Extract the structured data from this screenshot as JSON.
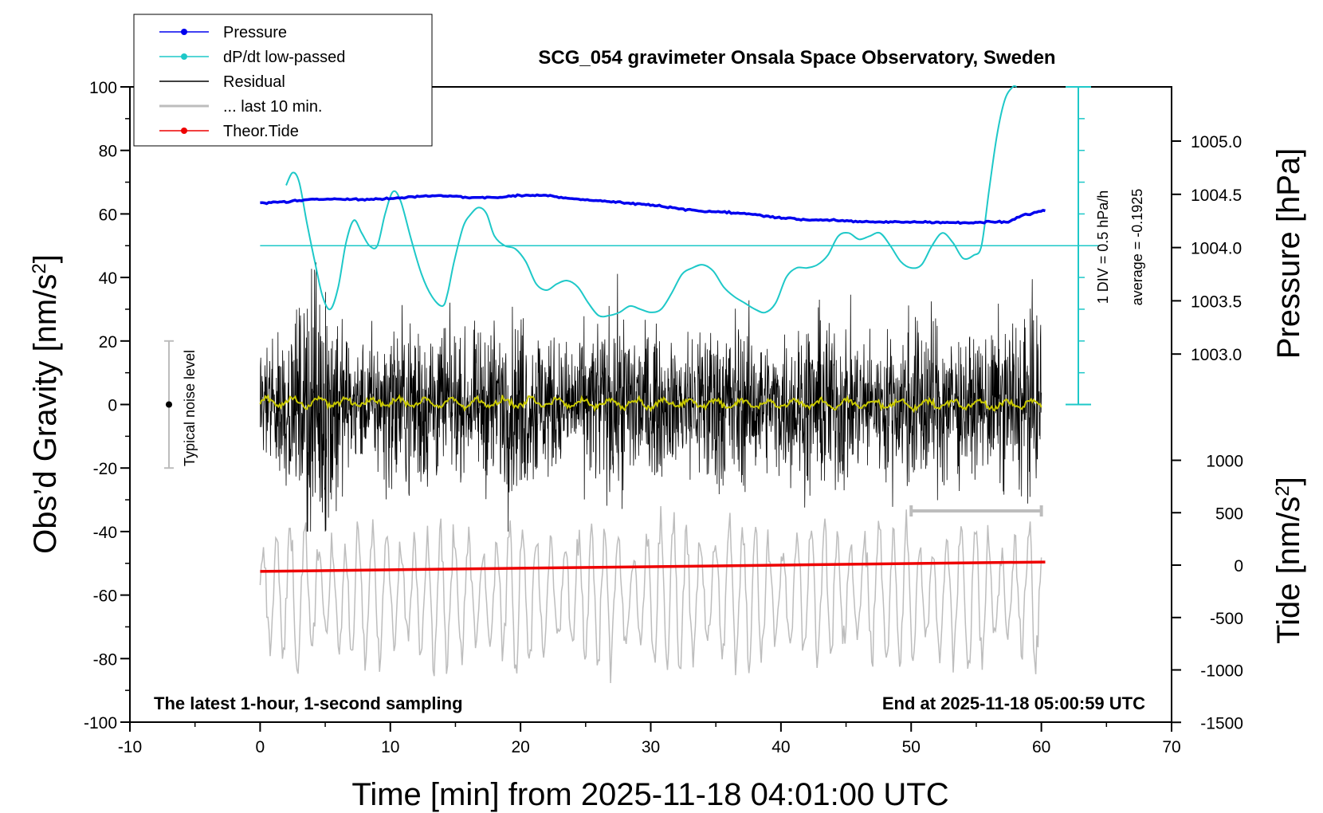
{
  "chart_data": {
    "type": "line",
    "title": "SCG_054 gravimeter Onsala Space Observatory, Sweden",
    "xlabel": "Time [min] from 2025-11-18 04:01:00 UTC",
    "ylabel_left": "Obs’d Gravity [nm/s²]",
    "ylabel_left_main": "Obs’d Gravity [nm/s",
    "ylabel_left_sup": "2",
    "ylabel_left_end": "]",
    "ylabel_right_top": "Pressure [hPa]",
    "ylabel_right_bottom": "Tide [nm/s²]",
    "ylabel_right_bottom_main": "Tide [nm/s",
    "ylabel_right_bottom_sup": "2",
    "ylabel_right_bottom_end": "]",
    "xlim": [
      -10,
      70
    ],
    "ylim": [
      -100,
      100
    ],
    "pressure_lim": [
      1002.5,
      1005.5
    ],
    "tide_lim": [
      -1500,
      1500
    ],
    "x_ticks": [
      -10,
      0,
      10,
      20,
      30,
      40,
      50,
      60,
      70
    ],
    "x_tick_labels": [
      "-10",
      "0",
      "10",
      "20",
      "30",
      "40",
      "50",
      "60",
      "70"
    ],
    "y_ticks": [
      -100,
      -80,
      -60,
      -40,
      -20,
      0,
      20,
      40,
      60,
      80,
      100
    ],
    "y_tick_labels": [
      "-100",
      "-80",
      "-60",
      "-40",
      "-20",
      "0",
      "20",
      "40",
      "60",
      "80",
      "100"
    ],
    "pressure_ticks": [
      1003.0,
      1003.5,
      1004.0,
      1004.5,
      1005.0
    ],
    "pressure_tick_labels": [
      "1003.0",
      "1003.5",
      "1004.0",
      "1004.5",
      "1005.0"
    ],
    "tide_ticks": [
      1000,
      500,
      0,
      -500,
      -1000,
      -1500
    ],
    "tide_tick_labels": [
      "1000",
      "500",
      "0",
      "-500",
      "-1000",
      "-1500"
    ],
    "footer_left": "The latest 1-hour, 1-second sampling",
    "footer_right": "End at 2025-11-18 05:00:59 UTC",
    "noise_label": "Typical noise level",
    "noise_range": [
      -20,
      20
    ],
    "dpdt_scale_label": "1 DIV = 0.5 hPa/h",
    "dpdt_average_label": "average = -0.1925",
    "legend": [
      {
        "name": "Pressure",
        "color": "#0000ee",
        "marker": true
      },
      {
        "name": "dP/dt low-passed",
        "color": "#1ec8c8",
        "marker": true
      },
      {
        "name": "Residual",
        "color": "#000000",
        "marker": false
      },
      {
        "name": "... last 10 min.",
        "color": "#bdbdbd",
        "marker": false
      },
      {
        "name": "Theor.Tide",
        "color": "#ee0000",
        "marker": true
      }
    ],
    "colors": {
      "pressure": "#0000ee",
      "dpdt": "#1ec8c8",
      "residual": "#000000",
      "smoothed_residual": "#c8c800",
      "last10": "#bdbdbd",
      "tide": "#ee0000"
    },
    "series": [
      {
        "name": "Pressure",
        "axis": "pressure_hPa",
        "x": [
          0,
          2,
          4,
          6,
          8,
          10,
          12,
          14,
          16,
          18,
          20,
          22,
          24,
          26,
          28,
          30,
          32,
          34,
          36,
          38,
          40,
          42,
          44,
          46,
          48,
          50,
          52,
          54,
          56,
          57.5,
          58.5,
          60.3
        ],
        "values": [
          1004.42,
          1004.43,
          1004.45,
          1004.46,
          1004.45,
          1004.46,
          1004.48,
          1004.49,
          1004.47,
          1004.47,
          1004.49,
          1004.49,
          1004.46,
          1004.44,
          1004.42,
          1004.4,
          1004.37,
          1004.34,
          1004.33,
          1004.31,
          1004.28,
          1004.26,
          1004.26,
          1004.24,
          1004.24,
          1004.24,
          1004.24,
          1004.23,
          1004.24,
          1004.24,
          1004.3,
          1004.35
        ]
      },
      {
        "name": "dP/dt low-passed",
        "axis": "gravity_units",
        "x": [
          2,
          2.5,
          3,
          3.6,
          4.2,
          4.8,
          5.4,
          6.0,
          6.6,
          7.2,
          7.8,
          8.4,
          9.0,
          9.6,
          10.2,
          10.8,
          11.6,
          12.4,
          13.2,
          14.0,
          14.4,
          14.9,
          15.6,
          16.2,
          16.8,
          17.4,
          18.0,
          18.8,
          19.6,
          20.4,
          21.2,
          22.0,
          22.8,
          23.6,
          24.4,
          25.2,
          26.0,
          26.8,
          27.6,
          28.4,
          29.2,
          30.0,
          30.8,
          31.6,
          32.4,
          33.2,
          34.0,
          34.8,
          35.6,
          36.4,
          37.2,
          38.0,
          38.8,
          39.6,
          40.4,
          41.2,
          42.0,
          42.8,
          43.6,
          44.4,
          45.2,
          46.0,
          46.8,
          47.6,
          48.4,
          49.2,
          50.0,
          50.8,
          51.6,
          52.4,
          53.2,
          54.0,
          54.8,
          55.4,
          56.0,
          56.6,
          57.2,
          57.8,
          58.1
        ],
        "values": [
          69,
          73,
          70,
          57,
          45,
          34,
          30,
          37,
          51,
          58,
          54,
          50,
          50,
          60,
          67,
          64,
          52,
          41,
          34,
          31,
          35,
          45,
          56,
          60,
          62,
          60,
          53,
          50,
          49,
          45,
          38,
          36,
          38,
          39,
          37,
          32,
          28,
          28,
          29,
          31,
          30,
          29,
          30,
          35,
          41,
          43,
          44,
          42,
          37,
          34,
          32,
          30,
          29,
          32,
          40,
          43,
          43,
          44,
          47,
          53,
          54,
          52,
          53,
          54,
          50,
          45,
          43,
          44,
          50,
          54,
          51,
          46,
          47,
          50,
          68,
          85,
          96,
          100,
          100
        ]
      },
      {
        "name": "Residual",
        "axis": "gravity_units",
        "x_range": [
          0,
          60
        ],
        "approx_envelope": [
          -40,
          50
        ],
        "note": "1-second samples, noisy around 0"
      },
      {
        "name": "Residual smoothed",
        "axis": "gravity_units",
        "x_range": [
          0,
          60
        ],
        "approx_value": 0
      },
      {
        "name": "... last 10 min.",
        "axis": "gravity_units",
        "x_range": [
          0,
          60
        ],
        "approx_envelope": [
          -88,
          -32
        ],
        "center": -60
      },
      {
        "name": "Theor.Tide",
        "axis": "tide_nm_s2",
        "x": [
          0,
          10,
          20,
          30,
          40,
          50,
          60.3
        ],
        "values": [
          -60,
          -45,
          -30,
          -15,
          0,
          15,
          30
        ]
      }
    ]
  }
}
